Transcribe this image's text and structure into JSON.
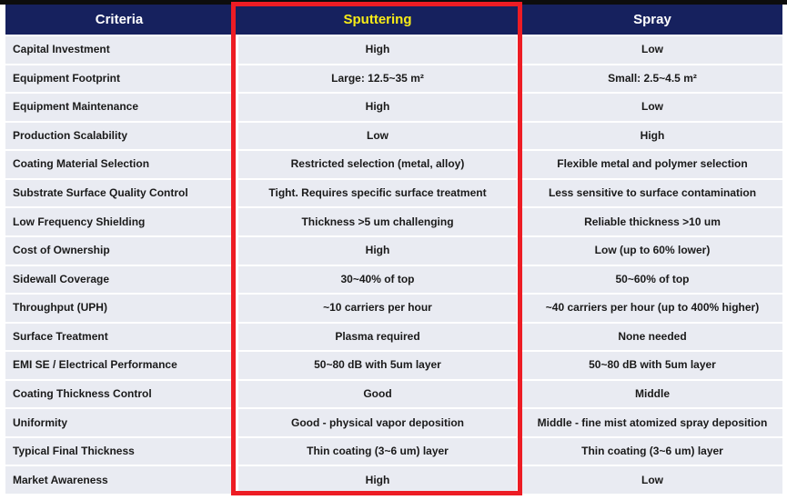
{
  "colors": {
    "top_line": "#0d0d0d",
    "header_bg": "#16215e",
    "header_text": "#ffffff",
    "sputtering_header_text": "#f8ec17",
    "highlight_border": "#ed1c24",
    "row_bg": "#e9ebf2",
    "row_separator": "#ffffff",
    "body_text": "#1a1a1a"
  },
  "table": {
    "columns": [
      {
        "key": "criteria",
        "label": "Criteria"
      },
      {
        "key": "sputtering",
        "label": "Sputtering"
      },
      {
        "key": "spray",
        "label": "Spray"
      }
    ],
    "highlighted_column": "Sputtering",
    "rows": [
      {
        "criteria": "Capital Investment",
        "sputtering": "High",
        "spray": "Low"
      },
      {
        "criteria": "Equipment Footprint",
        "sputtering": "Large: 12.5~35 m²",
        "spray": "Small: 2.5~4.5 m²"
      },
      {
        "criteria": "Equipment Maintenance",
        "sputtering": "High",
        "spray": "Low"
      },
      {
        "criteria": "Production Scalability",
        "sputtering": "Low",
        "spray": "High"
      },
      {
        "criteria": "Coating Material Selection",
        "sputtering": "Restricted selection (metal, alloy)",
        "spray": "Flexible metal and polymer selection"
      },
      {
        "criteria": "Substrate Surface Quality Control",
        "sputtering": "Tight. Requires specific surface treatment",
        "spray": "Less sensitive to surface contamination"
      },
      {
        "criteria": "Low Frequency Shielding",
        "sputtering": "Thickness >5 um challenging",
        "spray": "Reliable thickness >10 um"
      },
      {
        "criteria": "Cost of Ownership",
        "sputtering": "High",
        "spray": "Low (up to 60% lower)"
      },
      {
        "criteria": "Sidewall Coverage",
        "sputtering": "30~40% of top",
        "spray": "50~60% of top"
      },
      {
        "criteria": "Throughput (UPH)",
        "sputtering": "~10 carriers per hour",
        "spray": "~40 carriers per hour (up to 400% higher)"
      },
      {
        "criteria": "Surface Treatment",
        "sputtering": "Plasma required",
        "spray": "None needed"
      },
      {
        "criteria": "EMI SE / Electrical Performance",
        "sputtering": "50~80 dB with 5um layer",
        "spray": "50~80 dB with 5um layer"
      },
      {
        "criteria": "Coating Thickness Control",
        "sputtering": "Good",
        "spray": "Middle"
      },
      {
        "criteria": "Uniformity",
        "sputtering": "Good - physical vapor deposition",
        "spray": "Middle - fine mist atomized spray deposition"
      },
      {
        "criteria": "Typical Final Thickness",
        "sputtering": "Thin coating (3~6 um) layer",
        "spray": "Thin coating (3~6 um) layer"
      },
      {
        "criteria": "Market Awareness",
        "sputtering": "High",
        "spray": "Low"
      }
    ]
  }
}
